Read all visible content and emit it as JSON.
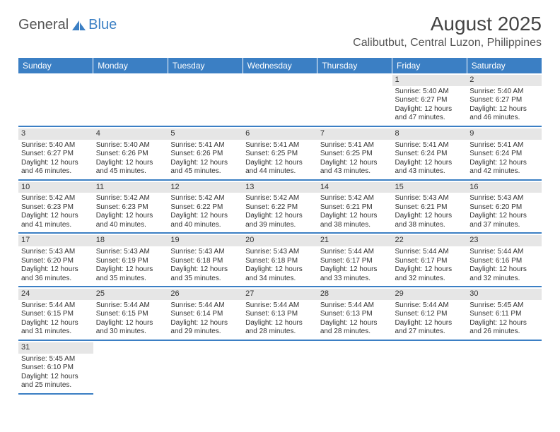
{
  "colors": {
    "header_bg": "#3b7fc4",
    "header_text": "#ffffff",
    "daynum_bg": "#e6e6e6",
    "cell_border": "#3b7fc4",
    "body_text": "#333333",
    "title_text": "#444444",
    "location_text": "#555555",
    "logo_gray": "#555555",
    "logo_blue": "#3b7fc4",
    "page_bg": "#ffffff"
  },
  "typography": {
    "month_title_size_pt": 21,
    "location_size_pt": 12,
    "weekday_size_pt": 9,
    "cell_size_pt": 7.5,
    "daynum_size_pt": 8
  },
  "logo": {
    "general": "General",
    "blue": "Blue"
  },
  "title": "August 2025",
  "location": "Calibutbut, Central Luzon, Philippines",
  "weekdays": [
    "Sunday",
    "Monday",
    "Tuesday",
    "Wednesday",
    "Thursday",
    "Friday",
    "Saturday"
  ],
  "layout": {
    "type": "table",
    "columns": 7,
    "rows": 6,
    "leading_blanks": 5,
    "trailing_blanks": 6
  },
  "days": [
    {
      "n": "1",
      "sunrise": "Sunrise: 5:40 AM",
      "sunset": "Sunset: 6:27 PM",
      "day1": "Daylight: 12 hours",
      "day2": "and 47 minutes."
    },
    {
      "n": "2",
      "sunrise": "Sunrise: 5:40 AM",
      "sunset": "Sunset: 6:27 PM",
      "day1": "Daylight: 12 hours",
      "day2": "and 46 minutes."
    },
    {
      "n": "3",
      "sunrise": "Sunrise: 5:40 AM",
      "sunset": "Sunset: 6:27 PM",
      "day1": "Daylight: 12 hours",
      "day2": "and 46 minutes."
    },
    {
      "n": "4",
      "sunrise": "Sunrise: 5:40 AM",
      "sunset": "Sunset: 6:26 PM",
      "day1": "Daylight: 12 hours",
      "day2": "and 45 minutes."
    },
    {
      "n": "5",
      "sunrise": "Sunrise: 5:41 AM",
      "sunset": "Sunset: 6:26 PM",
      "day1": "Daylight: 12 hours",
      "day2": "and 45 minutes."
    },
    {
      "n": "6",
      "sunrise": "Sunrise: 5:41 AM",
      "sunset": "Sunset: 6:25 PM",
      "day1": "Daylight: 12 hours",
      "day2": "and 44 minutes."
    },
    {
      "n": "7",
      "sunrise": "Sunrise: 5:41 AM",
      "sunset": "Sunset: 6:25 PM",
      "day1": "Daylight: 12 hours",
      "day2": "and 43 minutes."
    },
    {
      "n": "8",
      "sunrise": "Sunrise: 5:41 AM",
      "sunset": "Sunset: 6:24 PM",
      "day1": "Daylight: 12 hours",
      "day2": "and 43 minutes."
    },
    {
      "n": "9",
      "sunrise": "Sunrise: 5:41 AM",
      "sunset": "Sunset: 6:24 PM",
      "day1": "Daylight: 12 hours",
      "day2": "and 42 minutes."
    },
    {
      "n": "10",
      "sunrise": "Sunrise: 5:42 AM",
      "sunset": "Sunset: 6:23 PM",
      "day1": "Daylight: 12 hours",
      "day2": "and 41 minutes."
    },
    {
      "n": "11",
      "sunrise": "Sunrise: 5:42 AM",
      "sunset": "Sunset: 6:23 PM",
      "day1": "Daylight: 12 hours",
      "day2": "and 40 minutes."
    },
    {
      "n": "12",
      "sunrise": "Sunrise: 5:42 AM",
      "sunset": "Sunset: 6:22 PM",
      "day1": "Daylight: 12 hours",
      "day2": "and 40 minutes."
    },
    {
      "n": "13",
      "sunrise": "Sunrise: 5:42 AM",
      "sunset": "Sunset: 6:22 PM",
      "day1": "Daylight: 12 hours",
      "day2": "and 39 minutes."
    },
    {
      "n": "14",
      "sunrise": "Sunrise: 5:42 AM",
      "sunset": "Sunset: 6:21 PM",
      "day1": "Daylight: 12 hours",
      "day2": "and 38 minutes."
    },
    {
      "n": "15",
      "sunrise": "Sunrise: 5:43 AM",
      "sunset": "Sunset: 6:21 PM",
      "day1": "Daylight: 12 hours",
      "day2": "and 38 minutes."
    },
    {
      "n": "16",
      "sunrise": "Sunrise: 5:43 AM",
      "sunset": "Sunset: 6:20 PM",
      "day1": "Daylight: 12 hours",
      "day2": "and 37 minutes."
    },
    {
      "n": "17",
      "sunrise": "Sunrise: 5:43 AM",
      "sunset": "Sunset: 6:20 PM",
      "day1": "Daylight: 12 hours",
      "day2": "and 36 minutes."
    },
    {
      "n": "18",
      "sunrise": "Sunrise: 5:43 AM",
      "sunset": "Sunset: 6:19 PM",
      "day1": "Daylight: 12 hours",
      "day2": "and 35 minutes."
    },
    {
      "n": "19",
      "sunrise": "Sunrise: 5:43 AM",
      "sunset": "Sunset: 6:18 PM",
      "day1": "Daylight: 12 hours",
      "day2": "and 35 minutes."
    },
    {
      "n": "20",
      "sunrise": "Sunrise: 5:43 AM",
      "sunset": "Sunset: 6:18 PM",
      "day1": "Daylight: 12 hours",
      "day2": "and 34 minutes."
    },
    {
      "n": "21",
      "sunrise": "Sunrise: 5:44 AM",
      "sunset": "Sunset: 6:17 PM",
      "day1": "Daylight: 12 hours",
      "day2": "and 33 minutes."
    },
    {
      "n": "22",
      "sunrise": "Sunrise: 5:44 AM",
      "sunset": "Sunset: 6:17 PM",
      "day1": "Daylight: 12 hours",
      "day2": "and 32 minutes."
    },
    {
      "n": "23",
      "sunrise": "Sunrise: 5:44 AM",
      "sunset": "Sunset: 6:16 PM",
      "day1": "Daylight: 12 hours",
      "day2": "and 32 minutes."
    },
    {
      "n": "24",
      "sunrise": "Sunrise: 5:44 AM",
      "sunset": "Sunset: 6:15 PM",
      "day1": "Daylight: 12 hours",
      "day2": "and 31 minutes."
    },
    {
      "n": "25",
      "sunrise": "Sunrise: 5:44 AM",
      "sunset": "Sunset: 6:15 PM",
      "day1": "Daylight: 12 hours",
      "day2": "and 30 minutes."
    },
    {
      "n": "26",
      "sunrise": "Sunrise: 5:44 AM",
      "sunset": "Sunset: 6:14 PM",
      "day1": "Daylight: 12 hours",
      "day2": "and 29 minutes."
    },
    {
      "n": "27",
      "sunrise": "Sunrise: 5:44 AM",
      "sunset": "Sunset: 6:13 PM",
      "day1": "Daylight: 12 hours",
      "day2": "and 28 minutes."
    },
    {
      "n": "28",
      "sunrise": "Sunrise: 5:44 AM",
      "sunset": "Sunset: 6:13 PM",
      "day1": "Daylight: 12 hours",
      "day2": "and 28 minutes."
    },
    {
      "n": "29",
      "sunrise": "Sunrise: 5:44 AM",
      "sunset": "Sunset: 6:12 PM",
      "day1": "Daylight: 12 hours",
      "day2": "and 27 minutes."
    },
    {
      "n": "30",
      "sunrise": "Sunrise: 5:45 AM",
      "sunset": "Sunset: 6:11 PM",
      "day1": "Daylight: 12 hours",
      "day2": "and 26 minutes."
    },
    {
      "n": "31",
      "sunrise": "Sunrise: 5:45 AM",
      "sunset": "Sunset: 6:10 PM",
      "day1": "Daylight: 12 hours",
      "day2": "and 25 minutes."
    }
  ]
}
